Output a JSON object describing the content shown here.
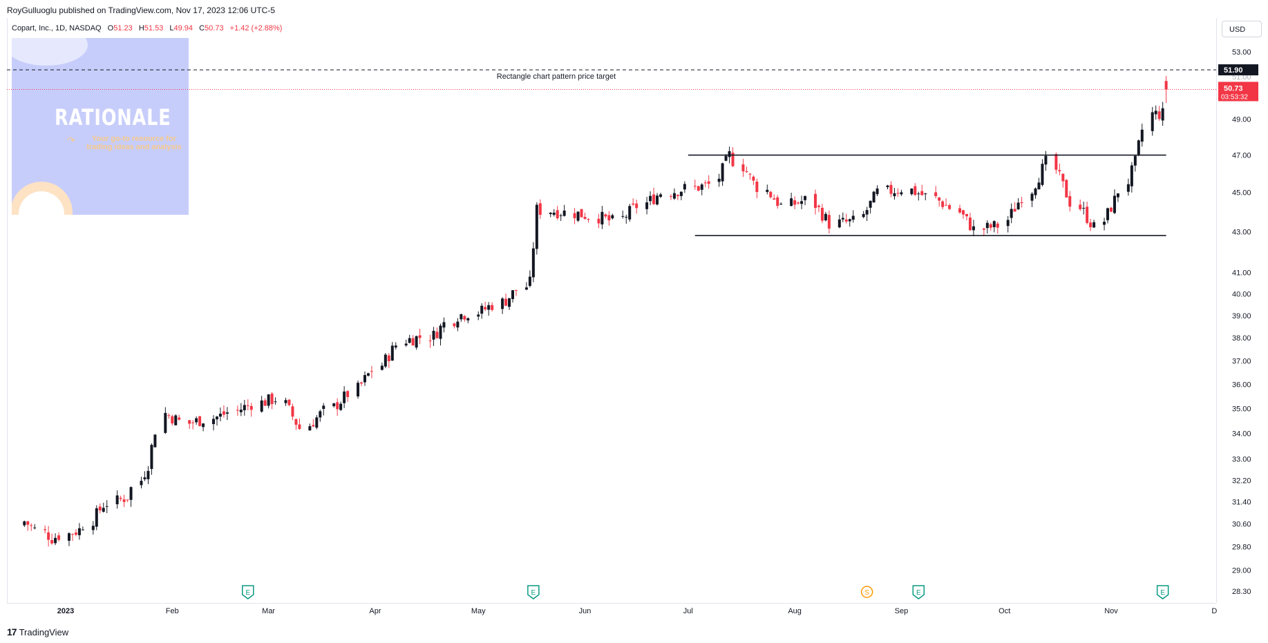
{
  "header": {
    "published_by": "RoyGulluoglu published on TradingView.com, Nov 17, 2023 12:06 UTC-5"
  },
  "legend": {
    "symbol": "Copart, Inc., 1D, NASDAQ",
    "o_label": "O",
    "o_value": "51.23",
    "h_label": "H",
    "h_value": "51.53",
    "l_label": "L",
    "l_value": "49.94",
    "c_label": "C",
    "c_value": "50.73",
    "change": "+1.42 (+2.88%)"
  },
  "currency": "USD",
  "watermark": {
    "title": "RATIONALE",
    "tagline": "Your go-to resource for trading ideas and analysis"
  },
  "footer": {
    "logo": "17",
    "brand": "TradingView"
  },
  "colors": {
    "up": "#131722",
    "down": "#f23645",
    "grid": "#ffffff",
    "target_line": "#131722",
    "current_line": "#f23645",
    "accent": "#c7cdfa"
  },
  "chart_data": {
    "type": "candlestick",
    "scale": "log",
    "ylim": [
      28.0,
      54.0
    ],
    "y_ticks": [
      "53.00",
      "51.00",
      "49.00",
      "47.00",
      "45.00",
      "43.00",
      "41.00",
      "40.00",
      "39.00",
      "38.00",
      "37.00",
      "36.00",
      "35.00",
      "34.00",
      "33.00",
      "32.20",
      "31.40",
      "30.60",
      "29.80",
      "29.00",
      "28.30"
    ],
    "x_ticks": [
      {
        "label": "2023",
        "date": "2023-01-01"
      },
      {
        "label": "Feb",
        "date": "2023-02-01"
      },
      {
        "label": "Mar",
        "date": "2023-03-01"
      },
      {
        "label": "Apr",
        "date": "2023-04-01"
      },
      {
        "label": "May",
        "date": "2023-05-01"
      },
      {
        "label": "Jun",
        "date": "2023-06-01"
      },
      {
        "label": "Jul",
        "date": "2023-07-01"
      },
      {
        "label": "Aug",
        "date": "2023-08-01"
      },
      {
        "label": "Sep",
        "date": "2023-09-01"
      },
      {
        "label": "Oct",
        "date": "2023-10-01"
      },
      {
        "label": "Nov",
        "date": "2023-11-01"
      },
      {
        "label": "D",
        "date": "2023-12-01"
      }
    ],
    "date_range": [
      "2022-12-16",
      "2023-12-05"
    ],
    "price_labels": [
      {
        "label": "51.90",
        "value": 51.9,
        "style": "dark"
      },
      {
        "label": "50.73",
        "value": 50.73,
        "style": "red"
      },
      {
        "label": "03:53:32",
        "value": 50.73,
        "style": "red-countdown"
      },
      {
        "label": "51.00",
        "value": 51.0,
        "style": "partial"
      }
    ],
    "annotations": [
      {
        "type": "hline",
        "value": 51.9,
        "style": "dashed",
        "text": "Rectangle chart pattern price target"
      },
      {
        "type": "segment",
        "value": 47.0,
        "from": "2023-07-01",
        "to": "2023-11-17",
        "style": "solid"
      },
      {
        "type": "segment",
        "value": 42.8,
        "from": "2023-07-03",
        "to": "2023-11-17",
        "style": "solid"
      }
    ],
    "events": [
      {
        "label": "E",
        "date": "2023-02-23"
      },
      {
        "label": "E",
        "date": "2023-05-17"
      },
      {
        "label": "S",
        "date": "2023-08-22"
      },
      {
        "label": "E",
        "date": "2023-09-06"
      },
      {
        "label": "E",
        "date": "2023-11-16"
      }
    ],
    "anchors": [
      {
        "date": "2022-12-20",
        "close": 30.7
      },
      {
        "date": "2022-12-28",
        "close": 30.1
      },
      {
        "date": "2023-01-05",
        "close": 30.4
      },
      {
        "date": "2023-01-12",
        "close": 31.3
      },
      {
        "date": "2023-01-19",
        "close": 31.6
      },
      {
        "date": "2023-01-25",
        "close": 32.8
      },
      {
        "date": "2023-01-30",
        "close": 34.8
      },
      {
        "date": "2023-02-06",
        "close": 34.4
      },
      {
        "date": "2023-02-15",
        "close": 34.7
      },
      {
        "date": "2023-02-24",
        "close": 35.2
      },
      {
        "date": "2023-03-03",
        "close": 35.4
      },
      {
        "date": "2023-03-10",
        "close": 34.2
      },
      {
        "date": "2023-03-17",
        "close": 34.9
      },
      {
        "date": "2023-03-24",
        "close": 35.6
      },
      {
        "date": "2023-03-31",
        "close": 36.6
      },
      {
        "date": "2023-04-10",
        "close": 37.9
      },
      {
        "date": "2023-04-18",
        "close": 38.1
      },
      {
        "date": "2023-04-25",
        "close": 39.0
      },
      {
        "date": "2023-05-02",
        "close": 39.2
      },
      {
        "date": "2023-05-09",
        "close": 39.7
      },
      {
        "date": "2023-05-16",
        "close": 40.5
      },
      {
        "date": "2023-05-18",
        "close": 44.1
      },
      {
        "date": "2023-05-25",
        "close": 44.0
      },
      {
        "date": "2023-06-02",
        "close": 43.8
      },
      {
        "date": "2023-06-09",
        "close": 43.5
      },
      {
        "date": "2023-06-16",
        "close": 44.3
      },
      {
        "date": "2023-06-23",
        "close": 45.0
      },
      {
        "date": "2023-06-30",
        "close": 45.2
      },
      {
        "date": "2023-07-07",
        "close": 45.4
      },
      {
        "date": "2023-07-13",
        "close": 47.0
      },
      {
        "date": "2023-07-20",
        "close": 45.5
      },
      {
        "date": "2023-07-28",
        "close": 44.3
      },
      {
        "date": "2023-08-04",
        "close": 44.6
      },
      {
        "date": "2023-08-11",
        "close": 43.4
      },
      {
        "date": "2023-08-18",
        "close": 43.5
      },
      {
        "date": "2023-08-25",
        "close": 45.0
      },
      {
        "date": "2023-09-01",
        "close": 45.2
      },
      {
        "date": "2023-09-08",
        "close": 44.8
      },
      {
        "date": "2023-09-15",
        "close": 44.2
      },
      {
        "date": "2023-09-22",
        "close": 43.1
      },
      {
        "date": "2023-09-29",
        "close": 43.3
      },
      {
        "date": "2023-10-06",
        "close": 44.8
      },
      {
        "date": "2023-10-13",
        "close": 46.6
      },
      {
        "date": "2023-10-20",
        "close": 44.5
      },
      {
        "date": "2023-10-27",
        "close": 43.2
      },
      {
        "date": "2023-11-02",
        "close": 44.6
      },
      {
        "date": "2023-11-08",
        "close": 46.6
      },
      {
        "date": "2023-11-13",
        "close": 49.3
      },
      {
        "date": "2023-11-16",
        "close": 49.31
      },
      {
        "date": "2023-11-17",
        "open": 51.23,
        "high": 51.53,
        "low": 49.94,
        "close": 50.73
      }
    ]
  }
}
